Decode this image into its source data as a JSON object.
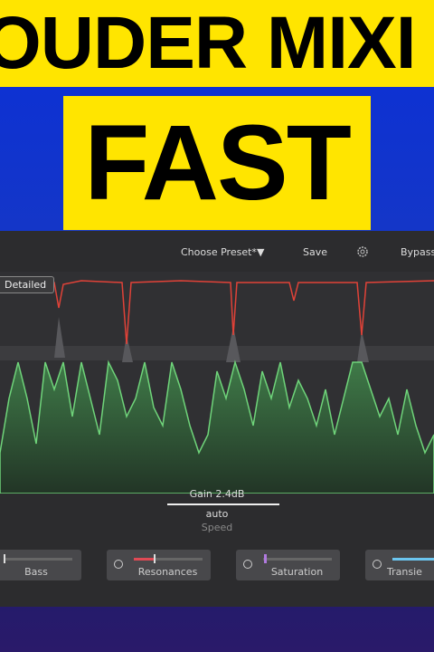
{
  "header": {
    "line1": "OUDER MIXI",
    "line2": "FAST"
  },
  "toolbar": {
    "preset": "Choose Preset*",
    "save": "Save",
    "bypass": "Bypass"
  },
  "view_mode": "Detailed",
  "gain": {
    "label": "Gain 2.4dB",
    "mode": "auto",
    "mode_label": "Speed"
  },
  "modules": [
    "Bass",
    "Resonances",
    "Saturation",
    "Transie"
  ]
}
